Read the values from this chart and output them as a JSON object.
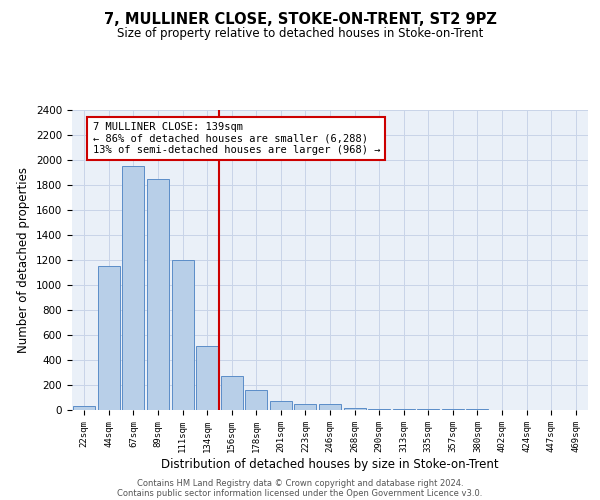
{
  "title": "7, MULLINER CLOSE, STOKE-ON-TRENT, ST2 9PZ",
  "subtitle": "Size of property relative to detached houses in Stoke-on-Trent",
  "xlabel": "Distribution of detached houses by size in Stoke-on-Trent",
  "ylabel": "Number of detached properties",
  "footer_line1": "Contains HM Land Registry data © Crown copyright and database right 2024.",
  "footer_line2": "Contains public sector information licensed under the Open Government Licence v3.0.",
  "annotation_title": "7 MULLINER CLOSE: 139sqm",
  "annotation_line2": "← 86% of detached houses are smaller (6,288)",
  "annotation_line3": "13% of semi-detached houses are larger (968) →",
  "categories": [
    "22sqm",
    "44sqm",
    "67sqm",
    "89sqm",
    "111sqm",
    "134sqm",
    "156sqm",
    "178sqm",
    "201sqm",
    "223sqm",
    "246sqm",
    "268sqm",
    "290sqm",
    "313sqm",
    "335sqm",
    "357sqm",
    "380sqm",
    "402sqm",
    "424sqm",
    "447sqm",
    "469sqm"
  ],
  "values": [
    30,
    1150,
    1950,
    1850,
    1200,
    510,
    270,
    160,
    75,
    50,
    50,
    20,
    10,
    10,
    5,
    5,
    5,
    2,
    2,
    1,
    1
  ],
  "bar_color": "#b8cfe8",
  "bar_edge_color": "#5b8dc8",
  "vline_color": "#cc0000",
  "vline_x": 5.5,
  "annotation_box_color": "#cc0000",
  "grid_color": "#c8d4e8",
  "background_color": "#eaf0f8",
  "ylim": [
    0,
    2400
  ],
  "yticks": [
    0,
    200,
    400,
    600,
    800,
    1000,
    1200,
    1400,
    1600,
    1800,
    2000,
    2200,
    2400
  ]
}
